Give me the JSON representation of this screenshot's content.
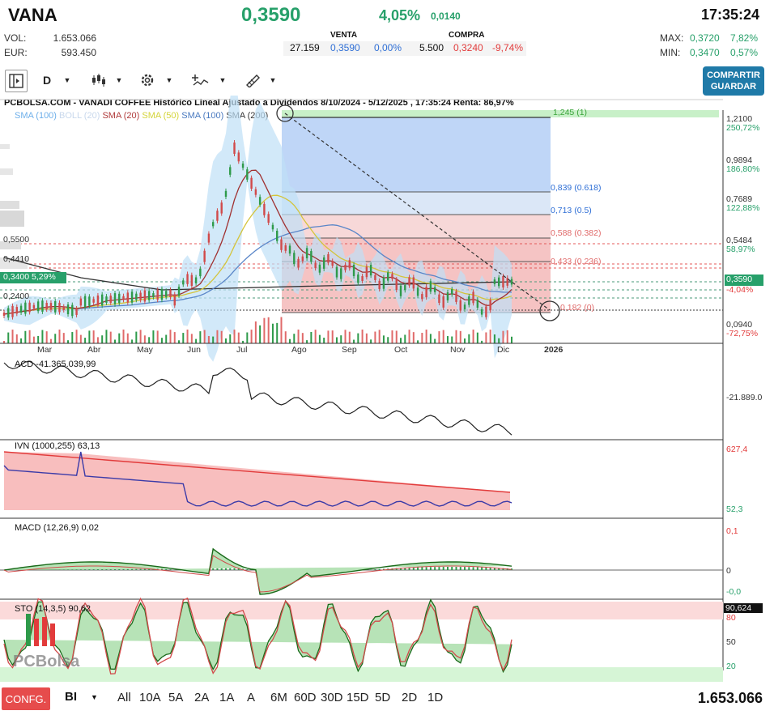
{
  "header": {
    "symbol": "VANA",
    "price": "0,3590",
    "pct_change": "4,05%",
    "abs_change": "0,0140",
    "time": "17:35:24",
    "vol_label": "VOL:",
    "vol_value": "1.653.066",
    "eur_label": "EUR:",
    "eur_value": "593.450",
    "max_label": "MAX:",
    "max_value": "0,3720",
    "max_pct": "7,82%",
    "min_label": "MIN:",
    "min_value": "0,3470",
    "min_pct": "0,57%"
  },
  "quote": {
    "venta_label": "VENTA",
    "compra_label": "COMPRA",
    "venta_qty": "27.159",
    "venta_price": "0,3590",
    "venta_pct": "0,00%",
    "compra_qty": "5.500",
    "compra_price": "0,3240",
    "compra_pct": "-9,74%"
  },
  "toolbar": {
    "period": "D",
    "share_line1": "COMPARTIR",
    "share_line2": "GUARDAR"
  },
  "chart": {
    "title": "PCBOLSA.COM - VANADI COFFEE Histórico Lineal Ajustado a Dividendos 8/10/2024 - 5/12/2025 , 17:35:24 Renta: 86,97%",
    "legend": [
      "SMA (100)",
      "BOLL (20)",
      "SMA (20)",
      "SMA (50)",
      "SMA (100)",
      "SMA (200)"
    ],
    "legend_colors": [
      "#6fb0ea",
      "#c8d8ec",
      "#b03a3a",
      "#d4d43a",
      "#4a7ac0",
      "#333333"
    ],
    "months": [
      "Mar",
      "Abr",
      "May",
      "Jun",
      "Jul",
      "Ago",
      "Sep",
      "Oct",
      "Nov",
      "Dic",
      "2026"
    ],
    "right_axis": [
      {
        "v": "1,2100",
        "p": "250,72%"
      },
      {
        "v": "0,9894",
        "p": "186,80%"
      },
      {
        "v": "0,7689",
        "p": "122,88%"
      },
      {
        "v": "0,5484",
        "p": "58,97%"
      },
      {
        "v": "0,3590",
        "p": "-4,04%"
      },
      {
        "v": "0,0940",
        "p": "-72,75%"
      }
    ],
    "left_levels": [
      "0,5500",
      "0,4410",
      "0,3400",
      "0,2400"
    ],
    "current_tag": "0,3400",
    "current_tag_pct": "5,29%",
    "fib": [
      {
        "label": "1,245 (1)"
      },
      {
        "label": "0,839 (0.618)"
      },
      {
        "label": "0,713 (0.5)"
      },
      {
        "label": "0,588 (0.382)"
      },
      {
        "label": "0,433 (0.236)"
      },
      {
        "label": "0,182 (0)"
      }
    ]
  },
  "indicators": {
    "acd_label": "ACD",
    "acd_value": "-41.365.039,99",
    "acd_axis": "-21.889.0",
    "ivn_label": "IVN (1000,255)",
    "ivn_value": "63,13",
    "ivn_axis_top": "627,4",
    "ivn_axis_bottom": "52,3",
    "macd_label": "MACD (12,26,9)",
    "macd_value": "0,02",
    "macd_axis": [
      "0,1",
      "0",
      "-0,0"
    ],
    "sto_label": "STO (14,3,5)",
    "sto_value": "90,62",
    "sto_axis": [
      "90,624",
      "80",
      "50",
      "20"
    ],
    "watermark": "PCBolsa"
  },
  "bottom": {
    "config": "CONFG.",
    "type": "BI",
    "ranges": [
      "All",
      "10A",
      "5A",
      "2A",
      "1A",
      "A",
      "6M",
      "60D",
      "30D",
      "15D",
      "5D",
      "2D",
      "1D"
    ],
    "total": "1.653.066"
  }
}
